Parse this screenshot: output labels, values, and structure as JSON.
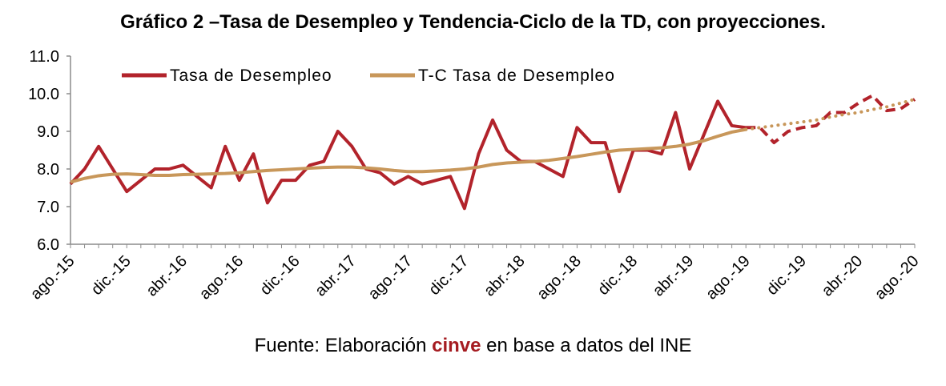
{
  "chart_data": {
    "type": "line",
    "title": "Gráfico 2 –Tasa de Desempleo y Tendencia-Ciclo de la TD, con proyecciones.",
    "xlabel": "",
    "ylabel": "",
    "ylim": [
      6.0,
      11.0
    ],
    "yticks": [
      "6.0",
      "7.0",
      "8.0",
      "9.0",
      "10.0",
      "11.0"
    ],
    "xtick_labels": [
      "ago.-15",
      "dic.-15",
      "abr.-16",
      "ago.-16",
      "dic.-16",
      "abr.-17",
      "ago.-17",
      "dic.-17",
      "abr.-18",
      "ago.-18",
      "dic.-18",
      "abr.-19",
      "ago.-19",
      "dic.-19",
      "abr.-20",
      "ago.-20"
    ],
    "x": [
      "ago.-15",
      "sep.-15",
      "oct.-15",
      "nov.-15",
      "dic.-15",
      "ene.-16",
      "feb.-16",
      "mar.-16",
      "abr.-16",
      "may.-16",
      "jun.-16",
      "jul.-16",
      "ago.-16",
      "sep.-16",
      "oct.-16",
      "nov.-16",
      "dic.-16",
      "ene.-17",
      "feb.-17",
      "mar.-17",
      "abr.-17",
      "may.-17",
      "jun.-17",
      "jul.-17",
      "ago.-17",
      "sep.-17",
      "oct.-17",
      "nov.-17",
      "dic.-17",
      "ene.-18",
      "feb.-18",
      "mar.-18",
      "abr.-18",
      "may.-18",
      "jun.-18",
      "jul.-18",
      "ago.-18",
      "sep.-18",
      "oct.-18",
      "nov.-18",
      "dic.-18",
      "ene.-19",
      "feb.-19",
      "mar.-19",
      "abr.-19",
      "may.-19",
      "jun.-19",
      "jul.-19",
      "ago.-19",
      "sep.-19",
      "oct.-19",
      "nov.-19",
      "dic.-19",
      "ene.-20",
      "feb.-20",
      "mar.-20",
      "abr.-20",
      "may.-20",
      "jun.-20",
      "jul.-20",
      "ago.-20"
    ],
    "grid": false,
    "legend_position": "top-left",
    "series": [
      {
        "name": "Tasa de Desempleo",
        "color": "#b2232b",
        "values": [
          7.6,
          8.0,
          8.6,
          8.0,
          7.4,
          7.7,
          8.0,
          8.0,
          8.1,
          7.8,
          7.5,
          8.6,
          7.7,
          8.4,
          7.1,
          7.7,
          7.7,
          8.1,
          8.2,
          9.0,
          8.6,
          8.0,
          7.9,
          7.6,
          7.8,
          7.6,
          7.7,
          7.8,
          6.95,
          8.4,
          9.3,
          8.5,
          8.2,
          8.2,
          8.0,
          7.8,
          9.1,
          8.7,
          8.7,
          7.4,
          8.5,
          8.5,
          8.4,
          9.5,
          8.0,
          8.9,
          9.8,
          9.15,
          9.1,
          null,
          null,
          null,
          null,
          null,
          null,
          null,
          null,
          null,
          null,
          null,
          null
        ]
      },
      {
        "name": "T-C Tasa de Desempleo",
        "color": "#c8975a",
        "values": [
          7.65,
          7.75,
          7.82,
          7.86,
          7.87,
          7.85,
          7.83,
          7.83,
          7.85,
          7.86,
          7.87,
          7.88,
          7.9,
          7.93,
          7.96,
          7.98,
          8.0,
          8.02,
          8.04,
          8.05,
          8.05,
          8.03,
          8.0,
          7.96,
          7.93,
          7.93,
          7.95,
          7.97,
          8.0,
          8.05,
          8.12,
          8.16,
          8.18,
          8.2,
          8.23,
          8.28,
          8.33,
          8.39,
          8.45,
          8.5,
          8.52,
          8.54,
          8.56,
          8.6,
          8.66,
          8.75,
          8.87,
          8.98,
          9.05,
          null,
          null,
          null,
          null,
          null,
          null,
          null,
          null,
          null,
          null,
          null,
          null
        ]
      },
      {
        "name": "",
        "color": "#b2232b",
        "dashed": true,
        "values": [
          null,
          null,
          null,
          null,
          null,
          null,
          null,
          null,
          null,
          null,
          null,
          null,
          null,
          null,
          null,
          null,
          null,
          null,
          null,
          null,
          null,
          null,
          null,
          null,
          null,
          null,
          null,
          null,
          null,
          null,
          null,
          null,
          null,
          null,
          null,
          null,
          null,
          null,
          null,
          null,
          null,
          null,
          null,
          null,
          null,
          null,
          null,
          null,
          9.1,
          9.1,
          8.7,
          9.0,
          9.1,
          9.15,
          9.5,
          9.5,
          9.75,
          9.95,
          9.55,
          9.6,
          9.85
        ]
      },
      {
        "name": "",
        "color": "#c8975a",
        "dotted": true,
        "values": [
          null,
          null,
          null,
          null,
          null,
          null,
          null,
          null,
          null,
          null,
          null,
          null,
          null,
          null,
          null,
          null,
          null,
          null,
          null,
          null,
          null,
          null,
          null,
          null,
          null,
          null,
          null,
          null,
          null,
          null,
          null,
          null,
          null,
          null,
          null,
          null,
          null,
          null,
          null,
          null,
          null,
          null,
          null,
          null,
          null,
          null,
          null,
          null,
          9.05,
          9.1,
          9.15,
          9.2,
          9.25,
          9.3,
          9.38,
          9.45,
          9.5,
          9.58,
          9.65,
          9.75,
          9.85
        ]
      }
    ]
  },
  "source": {
    "prefix": "Fuente: Elaboración ",
    "brand": "cinve",
    "suffix": " en base a datos del INE"
  }
}
